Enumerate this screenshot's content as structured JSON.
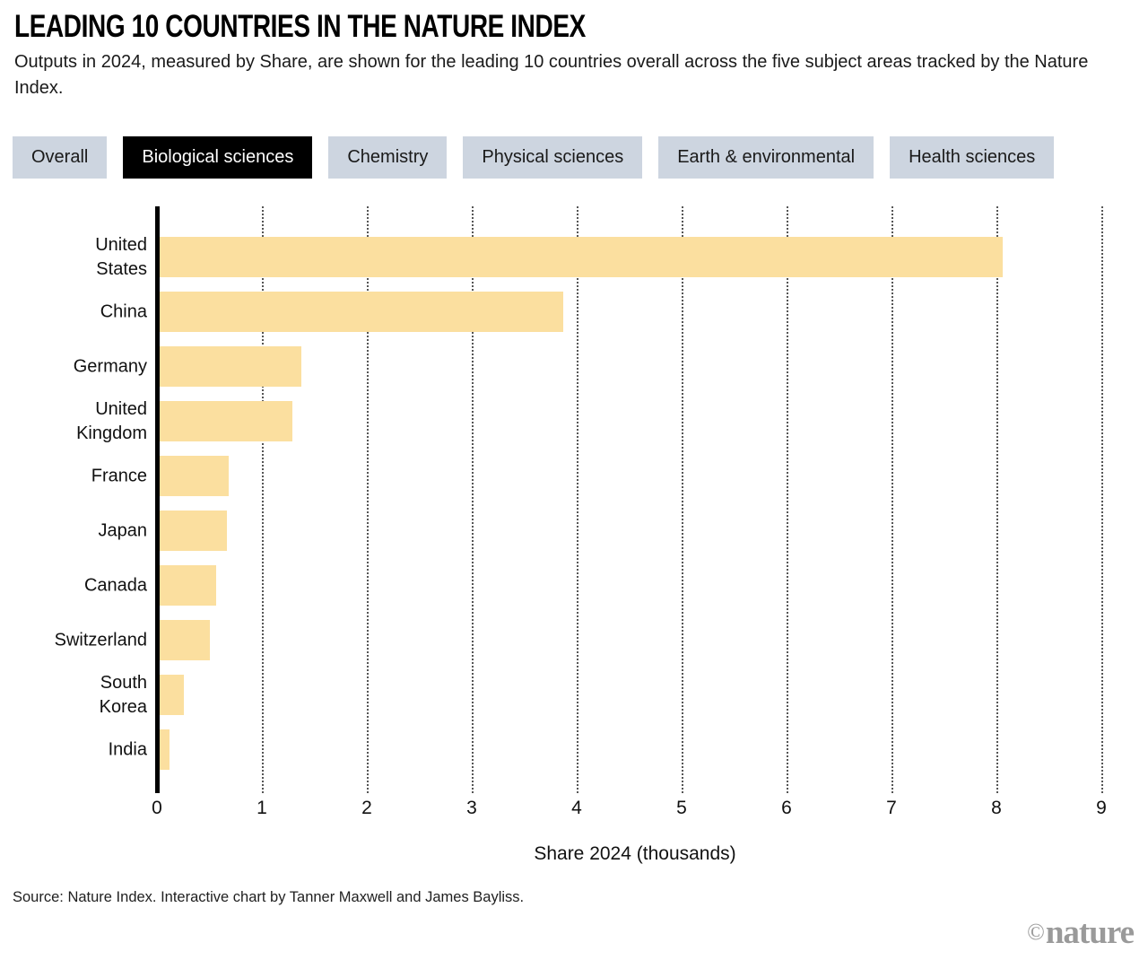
{
  "header": {
    "title": "LEADING 10 COUNTRIES IN THE NATURE INDEX",
    "subtitle": "Outputs in 2024, measured by Share, are shown for the leading 10 countries overall across the five subject areas tracked by the Nature Index."
  },
  "tabs": {
    "items": [
      {
        "label": "Overall",
        "active": false
      },
      {
        "label": "Biological sciences",
        "active": true
      },
      {
        "label": "Chemistry",
        "active": false
      },
      {
        "label": "Physical sciences",
        "active": false
      },
      {
        "label": "Earth & environmental",
        "active": false
      },
      {
        "label": "Health sciences",
        "active": false
      }
    ]
  },
  "chart_data": {
    "type": "bar",
    "orientation": "horizontal",
    "title": "LEADING 10 COUNTRIES IN THE NATURE INDEX",
    "categories": [
      "United States",
      "China",
      "Germany",
      "United Kingdom",
      "France",
      "Japan",
      "Canada",
      "Switzerland",
      "South Korea",
      "India"
    ],
    "category_lines": [
      [
        "United",
        "States"
      ],
      [
        "China"
      ],
      [
        "Germany"
      ],
      [
        "United",
        "Kingdom"
      ],
      [
        "France"
      ],
      [
        "Japan"
      ],
      [
        "Canada"
      ],
      [
        "Switzerland"
      ],
      [
        "South",
        "Korea"
      ],
      [
        "India"
      ]
    ],
    "values": [
      8.06,
      3.87,
      1.38,
      1.29,
      0.68,
      0.67,
      0.56,
      0.5,
      0.26,
      0.12
    ],
    "xlabel": "Share 2024 (thousands)",
    "x_ticks": [
      0,
      1,
      2,
      3,
      4,
      5,
      6,
      7,
      8,
      9
    ],
    "xlim": [
      0,
      9.11
    ],
    "grid": "dotted-vertical",
    "legend": "none",
    "bar_color": "#fbdf9f",
    "axis_color": "#000000",
    "gridline_color": "#555555"
  },
  "footer": {
    "source": "Source: Nature Index. Interactive chart by Tanner Maxwell and James Bayliss.",
    "brand_copyright": "©",
    "brand": "nature"
  }
}
